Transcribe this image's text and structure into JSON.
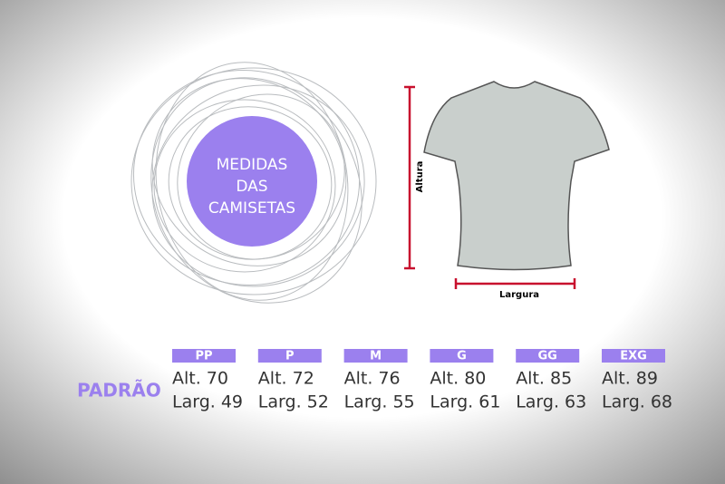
{
  "title": {
    "lines": [
      "MEDIDAS",
      "DAS",
      "CAMISETAS"
    ]
  },
  "shirt": {
    "height_label": "Altura",
    "width_label": "Largura"
  },
  "row_label": "PADRÃO",
  "sizes": [
    {
      "label": "PP",
      "height": "Alt. 70",
      "width": "Larg. 49"
    },
    {
      "label": "P",
      "height": "Alt. 72",
      "width": "Larg. 52"
    },
    {
      "label": "M",
      "height": "Alt. 76",
      "width": "Larg. 55"
    },
    {
      "label": "G",
      "height": "Alt. 80",
      "width": "Larg. 61"
    },
    {
      "label": "GG",
      "height": "Alt. 85",
      "width": "Larg. 63"
    },
    {
      "label": "EXG",
      "height": "Alt. 89",
      "width": "Larg. 68"
    }
  ]
}
